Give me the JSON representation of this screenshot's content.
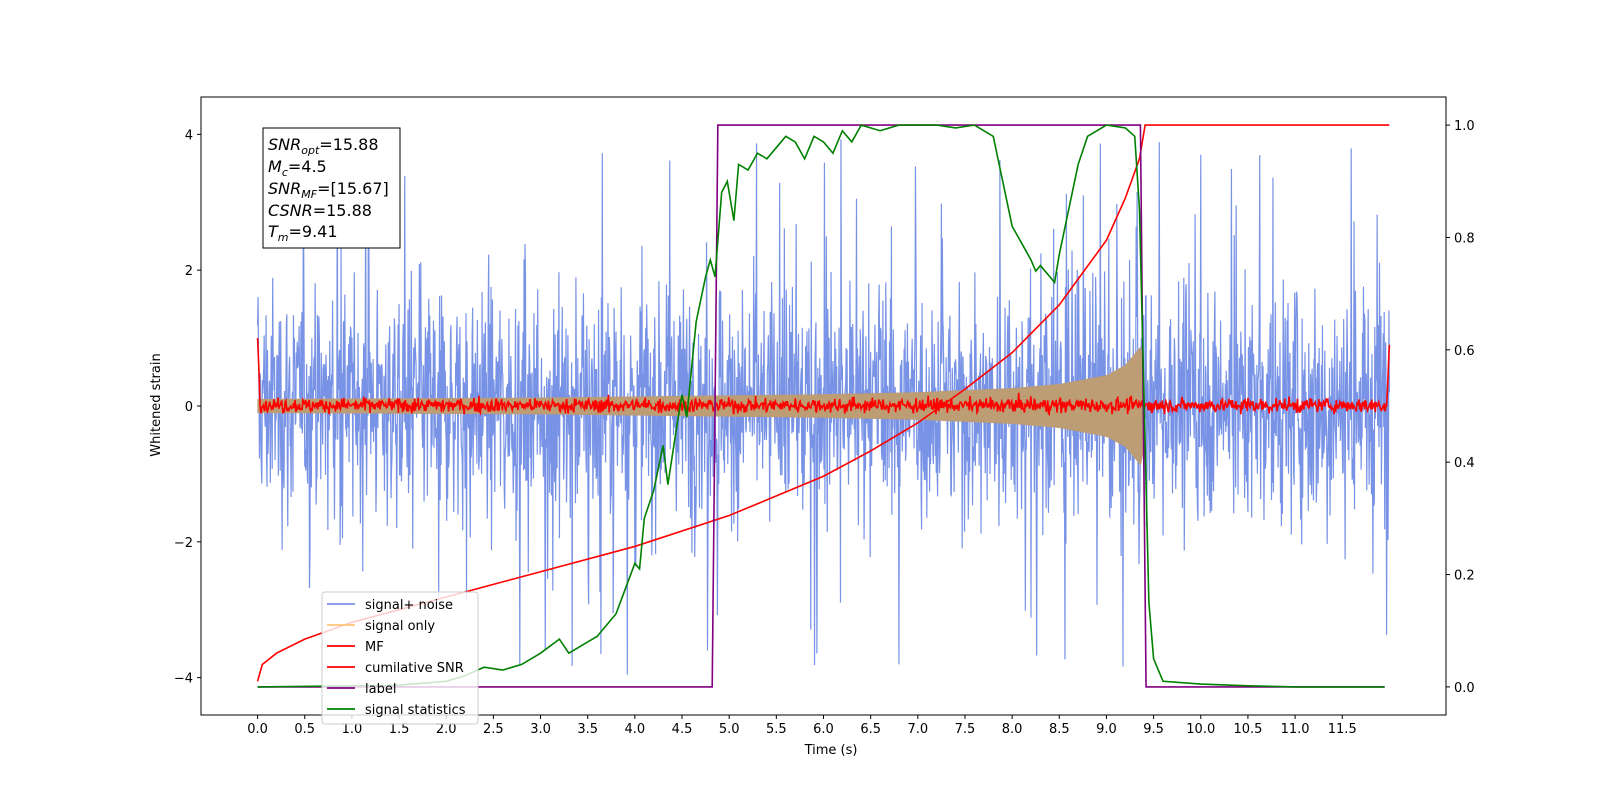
{
  "chart_data": {
    "type": "line",
    "title": "",
    "xlabel": "Time (s)",
    "ylabel": "Whitened strain",
    "xlim": [
      -0.6,
      12.6
    ],
    "ylim": [
      -4.55,
      4.55
    ],
    "y2lim": [
      -0.05,
      1.05
    ],
    "x_ticks": [
      "0.0",
      "0.5",
      "1.0",
      "1.5",
      "2.0",
      "2.5",
      "3.0",
      "3.5",
      "4.0",
      "4.5",
      "5.0",
      "5.5",
      "6.0",
      "6.5",
      "7.0",
      "7.5",
      "8.0",
      "8.5",
      "9.0",
      "9.5",
      "10.0",
      "10.5",
      "11.0",
      "11.5"
    ],
    "y_ticks": [
      "−4",
      "−2",
      "0",
      "2",
      "4"
    ],
    "y2_ticks": [
      "0.0",
      "0.2",
      "0.4",
      "0.6",
      "0.8",
      "1.0"
    ],
    "grid": false,
    "legend_position": "lower-left",
    "info_box": {
      "snr_opt": {
        "base": "SNR",
        "sub": "opt",
        "value": "=15.88"
      },
      "mc": {
        "base": "M",
        "sub": "c",
        "value": "=4.5"
      },
      "snr_mf": {
        "base": "SNR",
        "sub": "MF",
        "value": "=[15.67]"
      },
      "csnr": {
        "base": "CSNR",
        "value": "=15.88"
      },
      "tm": {
        "base": "T",
        "sub": "m",
        "value": "=9.41"
      }
    },
    "series": [
      {
        "name": "signal+ noise",
        "color": "#7893e6",
        "axis": "left",
        "kind": "noise-band",
        "x_range": [
          0,
          12.0
        ],
        "typical_band": [
          -1.5,
          1.6
        ],
        "extremes": [
          -4.1,
          4.2
        ]
      },
      {
        "name": "signal only",
        "color": "#ffc578",
        "axis": "left",
        "kind": "chirp-envelope",
        "x_range": [
          0,
          9.41
        ],
        "envelope": [
          [
            0.0,
            0.1
          ],
          [
            3.0,
            0.12
          ],
          [
            6.0,
            0.17
          ],
          [
            7.0,
            0.2
          ],
          [
            8.0,
            0.26
          ],
          [
            8.5,
            0.32
          ],
          [
            9.0,
            0.45
          ],
          [
            9.2,
            0.6
          ],
          [
            9.38,
            0.9
          ],
          [
            9.41,
            0.0
          ]
        ]
      },
      {
        "name": "MF",
        "color": "#ff0000",
        "axis": "left",
        "kind": "noise-band",
        "x_range": [
          0,
          12.0
        ],
        "typical_band": [
          -0.08,
          0.1
        ],
        "extremes": [
          -0.12,
          1.0
        ]
      },
      {
        "name": "cumilative SNR",
        "color": "#ff0000",
        "axis": "right",
        "points": [
          [
            0.0,
            0.01
          ],
          [
            0.05,
            0.04
          ],
          [
            0.2,
            0.06
          ],
          [
            0.5,
            0.085
          ],
          [
            1.0,
            0.115
          ],
          [
            2.0,
            0.16
          ],
          [
            3.0,
            0.205
          ],
          [
            4.0,
            0.25
          ],
          [
            5.0,
            0.305
          ],
          [
            6.0,
            0.375
          ],
          [
            6.5,
            0.42
          ],
          [
            7.0,
            0.47
          ],
          [
            7.5,
            0.53
          ],
          [
            8.0,
            0.595
          ],
          [
            8.5,
            0.68
          ],
          [
            9.0,
            0.795
          ],
          [
            9.2,
            0.87
          ],
          [
            9.35,
            0.94
          ],
          [
            9.41,
            1.0
          ],
          [
            12.0,
            1.0
          ]
        ]
      },
      {
        "name": "label",
        "color": "#800080",
        "axis": "right",
        "points": [
          [
            0.0,
            0.0
          ],
          [
            4.82,
            0.0
          ],
          [
            4.88,
            1.0
          ],
          [
            9.36,
            1.0
          ],
          [
            9.42,
            0.0
          ],
          [
            11.95,
            0.0
          ]
        ]
      },
      {
        "name": "signal statistics",
        "color": "#008000",
        "axis": "right",
        "points": [
          [
            0.0,
            0.0
          ],
          [
            1.0,
            0.002
          ],
          [
            1.5,
            0.003
          ],
          [
            2.0,
            0.01
          ],
          [
            2.2,
            0.02
          ],
          [
            2.4,
            0.035
          ],
          [
            2.6,
            0.03
          ],
          [
            2.8,
            0.04
          ],
          [
            3.0,
            0.06
          ],
          [
            3.2,
            0.085
          ],
          [
            3.3,
            0.06
          ],
          [
            3.4,
            0.07
          ],
          [
            3.5,
            0.08
          ],
          [
            3.6,
            0.09
          ],
          [
            3.7,
            0.11
          ],
          [
            3.8,
            0.13
          ],
          [
            3.9,
            0.175
          ],
          [
            4.0,
            0.22
          ],
          [
            4.05,
            0.21
          ],
          [
            4.1,
            0.3
          ],
          [
            4.2,
            0.35
          ],
          [
            4.3,
            0.43
          ],
          [
            4.35,
            0.36
          ],
          [
            4.45,
            0.47
          ],
          [
            4.5,
            0.52
          ],
          [
            4.55,
            0.48
          ],
          [
            4.65,
            0.65
          ],
          [
            4.75,
            0.73
          ],
          [
            4.8,
            0.76
          ],
          [
            4.85,
            0.73
          ],
          [
            4.92,
            0.88
          ],
          [
            4.98,
            0.9
          ],
          [
            5.05,
            0.83
          ],
          [
            5.1,
            0.93
          ],
          [
            5.2,
            0.92
          ],
          [
            5.3,
            0.95
          ],
          [
            5.4,
            0.94
          ],
          [
            5.5,
            0.96
          ],
          [
            5.6,
            0.98
          ],
          [
            5.7,
            0.97
          ],
          [
            5.8,
            0.94
          ],
          [
            5.9,
            0.98
          ],
          [
            6.0,
            0.97
          ],
          [
            6.1,
            0.95
          ],
          [
            6.2,
            0.99
          ],
          [
            6.3,
            0.97
          ],
          [
            6.4,
            1.0
          ],
          [
            6.6,
            0.99
          ],
          [
            6.8,
            1.0
          ],
          [
            7.0,
            1.0
          ],
          [
            7.2,
            1.0
          ],
          [
            7.4,
            0.995
          ],
          [
            7.6,
            1.0
          ],
          [
            7.8,
            0.98
          ],
          [
            7.9,
            0.9
          ],
          [
            8.0,
            0.82
          ],
          [
            8.1,
            0.79
          ],
          [
            8.2,
            0.76
          ],
          [
            8.25,
            0.74
          ],
          [
            8.3,
            0.75
          ],
          [
            8.4,
            0.73
          ],
          [
            8.45,
            0.72
          ],
          [
            8.5,
            0.77
          ],
          [
            8.6,
            0.85
          ],
          [
            8.7,
            0.93
          ],
          [
            8.8,
            0.98
          ],
          [
            9.0,
            1.0
          ],
          [
            9.2,
            0.995
          ],
          [
            9.3,
            0.98
          ],
          [
            9.35,
            0.85
          ],
          [
            9.4,
            0.5
          ],
          [
            9.45,
            0.15
          ],
          [
            9.5,
            0.05
          ],
          [
            9.6,
            0.01
          ],
          [
            10.0,
            0.005
          ],
          [
            10.5,
            0.002
          ],
          [
            11.0,
            0.0
          ],
          [
            11.95,
            0.0
          ]
        ]
      }
    ]
  }
}
